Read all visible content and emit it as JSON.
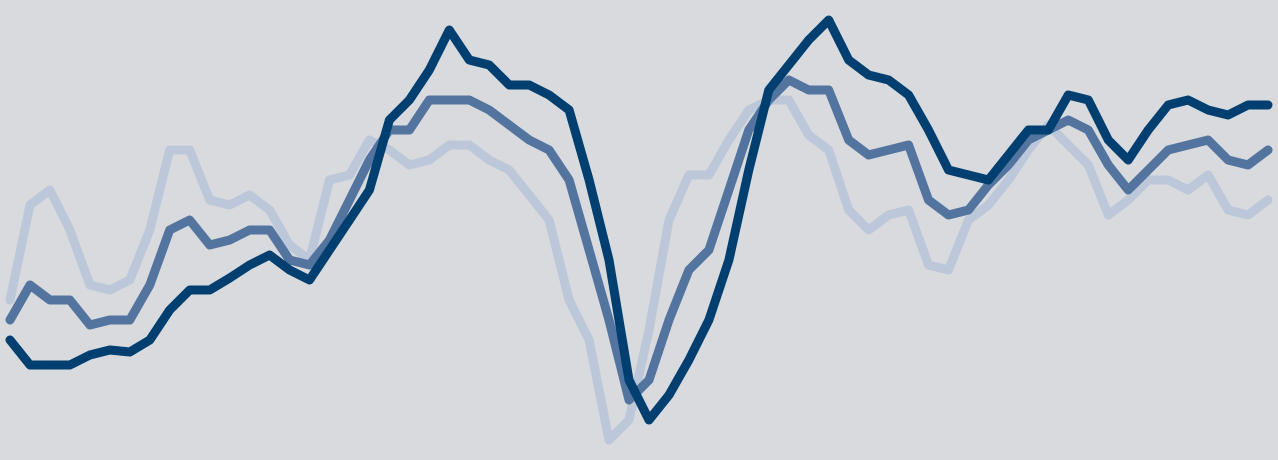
{
  "chart_data": {
    "type": "line",
    "ylim": [
      0,
      460
    ],
    "series": [
      {
        "color": "#bcc7da",
        "values": [
          160,
          255,
          270,
          230,
          175,
          170,
          180,
          230,
          310,
          310,
          260,
          255,
          265,
          250,
          215,
          200,
          280,
          285,
          320,
          310,
          295,
          300,
          315,
          315,
          300,
          290,
          265,
          240,
          160,
          120,
          20,
          40,
          130,
          240,
          285,
          285,
          320,
          350,
          360,
          360,
          325,
          310,
          250,
          230,
          245,
          250,
          195,
          190,
          240,
          255,
          280,
          310,
          335,
          315,
          295,
          245,
          260,
          280,
          280,
          270,
          285,
          250,
          245,
          260
        ]
      },
      {
        "color": "#52749f",
        "values": [
          140,
          175,
          160,
          160,
          135,
          140,
          140,
          175,
          230,
          240,
          215,
          220,
          230,
          230,
          200,
          195,
          220,
          260,
          300,
          330,
          330,
          360,
          360,
          360,
          350,
          335,
          320,
          310,
          280,
          210,
          140,
          60,
          80,
          140,
          190,
          210,
          270,
          330,
          360,
          380,
          370,
          370,
          320,
          305,
          310,
          315,
          260,
          245,
          250,
          275,
          295,
          320,
          330,
          340,
          330,
          295,
          270,
          290,
          310,
          315,
          320,
          300,
          295,
          310
        ]
      },
      {
        "color": "#003f70",
        "values": [
          120,
          95,
          95,
          95,
          105,
          110,
          108,
          120,
          150,
          170,
          170,
          182,
          195,
          205,
          190,
          180,
          210,
          240,
          270,
          340,
          360,
          390,
          430,
          400,
          395,
          375,
          375,
          365,
          350,
          280,
          200,
          80,
          40,
          65,
          100,
          140,
          200,
          290,
          370,
          395,
          420,
          440,
          400,
          385,
          380,
          365,
          330,
          290,
          285,
          280,
          305,
          330,
          330,
          365,
          360,
          320,
          300,
          330,
          355,
          360,
          350,
          345,
          355,
          355
        ]
      }
    ]
  }
}
